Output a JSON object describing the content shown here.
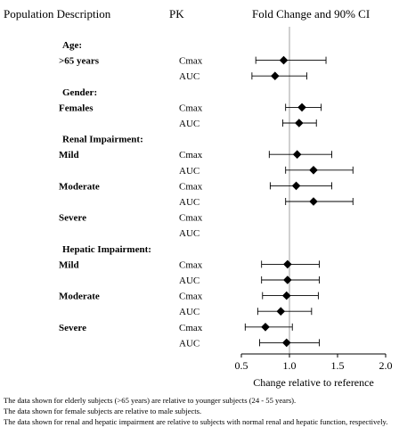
{
  "headers": {
    "population": "Population Description",
    "pk": "PK",
    "ci": "Fold Change and 90% CI"
  },
  "chart_data": {
    "type": "forest",
    "xlabel": "Change relative to reference",
    "xlim": [
      0.5,
      2.0
    ],
    "xticks": [
      "0.5",
      "1.0",
      "1.5",
      "2.0"
    ],
    "reference_line": 1.0,
    "rows": [
      {
        "kind": "group",
        "label": "Age:"
      },
      {
        "kind": "sub",
        "label": ">65 years",
        "pk": "Cmax",
        "est": 0.94,
        "lo": 0.65,
        "hi": 1.38
      },
      {
        "kind": "pk",
        "pk": "AUC",
        "est": 0.85,
        "lo": 0.61,
        "hi": 1.18
      },
      {
        "kind": "group",
        "label": "Gender:"
      },
      {
        "kind": "sub",
        "label": "Females",
        "pk": "Cmax",
        "est": 1.13,
        "lo": 0.96,
        "hi": 1.33
      },
      {
        "kind": "pk",
        "pk": "AUC",
        "est": 1.1,
        "lo": 0.93,
        "hi": 1.28
      },
      {
        "kind": "group",
        "label": "Renal Impairment:"
      },
      {
        "kind": "sub",
        "label": "Mild",
        "pk": "Cmax",
        "est": 1.08,
        "lo": 0.79,
        "hi": 1.44
      },
      {
        "kind": "pk",
        "pk": "AUC",
        "est": 1.25,
        "lo": 0.96,
        "hi": 1.66
      },
      {
        "kind": "sub",
        "label": "Moderate",
        "pk": "Cmax",
        "est": 1.07,
        "lo": 0.8,
        "hi": 1.44
      },
      {
        "kind": "pk",
        "pk": "AUC",
        "est": 1.25,
        "lo": 0.96,
        "hi": 1.66
      },
      {
        "kind": "sub",
        "label": "Severe",
        "pk": "Cmax"
      },
      {
        "kind": "pk",
        "pk": "AUC"
      },
      {
        "kind": "group",
        "label": "Hepatic Impairment:"
      },
      {
        "kind": "sub",
        "label": "Mild",
        "pk": "Cmax",
        "est": 0.98,
        "lo": 0.71,
        "hi": 1.31
      },
      {
        "kind": "pk",
        "pk": "AUC",
        "est": 0.98,
        "lo": 0.71,
        "hi": 1.31
      },
      {
        "kind": "sub",
        "label": "Moderate",
        "pk": "Cmax",
        "est": 0.97,
        "lo": 0.72,
        "hi": 1.3
      },
      {
        "kind": "pk",
        "pk": "AUC",
        "est": 0.91,
        "lo": 0.67,
        "hi": 1.23
      },
      {
        "kind": "sub",
        "label": "Severe",
        "pk": "Cmax",
        "est": 0.75,
        "lo": 0.54,
        "hi": 1.03
      },
      {
        "kind": "pk",
        "pk": "AUC",
        "est": 0.97,
        "lo": 0.69,
        "hi": 1.31
      }
    ]
  },
  "footnotes": [
    "The data shown for elderly subjects (>65 years) are relative to younger subjects (24 - 55 years).",
    "The data shown for female subjects are relative to male subjects.",
    "The data shown for renal and hepatic impairment are relative to subjects with normal renal and hepatic function, respectively."
  ]
}
